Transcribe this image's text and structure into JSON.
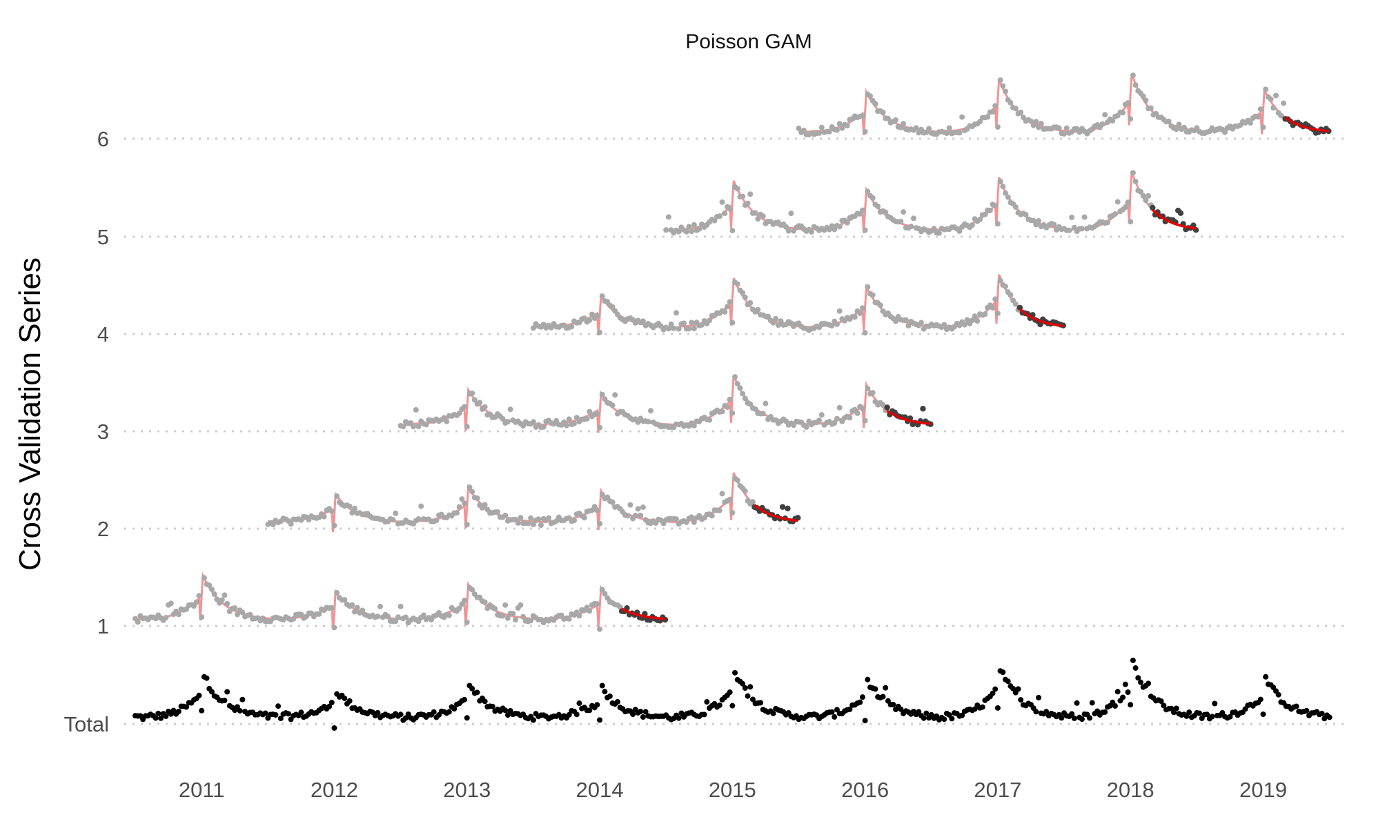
{
  "chart_data": {
    "type": "scatter",
    "title": "Poisson GAM",
    "xlabel": "",
    "ylabel": "Cross Validation Series",
    "x_ticks": [
      "2011",
      "2012",
      "2013",
      "2014",
      "2015",
      "2016",
      "2017",
      "2018",
      "2019"
    ],
    "y_ticks": [
      "Total",
      "1",
      "2",
      "3",
      "4",
      "5",
      "6"
    ],
    "xlim": [
      "2010-06-01",
      "2019-08-15"
    ],
    "grid": "horizontal dotted",
    "legend": "none",
    "colors": {
      "total_points": "#000000",
      "train_points": "#a8a8a8",
      "test_points": "#404040",
      "fit_line": "#f08080",
      "forecast_line": "#e00000"
    },
    "series": [
      {
        "name": "Total",
        "start": "2010-07-01",
        "end": "2019-07-01"
      },
      {
        "name": "1",
        "train_start": "2010-07-01",
        "train_end": "2014-03-01",
        "test_end": "2014-07-01"
      },
      {
        "name": "2",
        "train_start": "2011-07-01",
        "train_end": "2015-03-01",
        "test_end": "2015-07-01"
      },
      {
        "name": "3",
        "train_start": "2012-07-01",
        "train_end": "2016-03-01",
        "test_end": "2016-07-01"
      },
      {
        "name": "4",
        "train_start": "2013-07-01",
        "train_end": "2017-03-01",
        "test_end": "2017-07-01"
      },
      {
        "name": "5",
        "train_start": "2014-07-01",
        "train_end": "2018-03-01",
        "test_end": "2018-07-01"
      },
      {
        "name": "6",
        "train_start": "2015-07-01",
        "train_end": "2019-03-01",
        "test_end": "2019-07-01"
      }
    ]
  }
}
